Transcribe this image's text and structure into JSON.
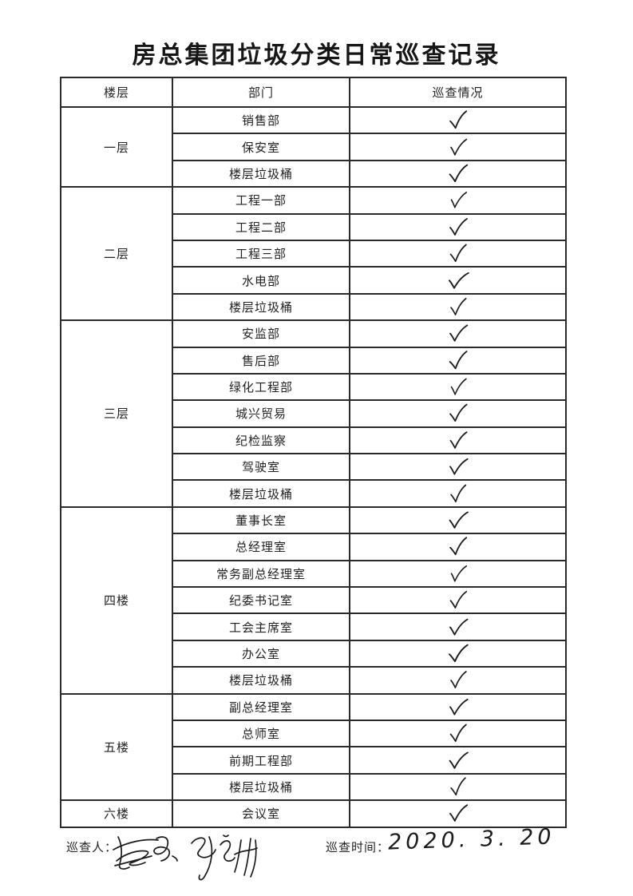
{
  "page": {
    "title": "房总集团垃圾分类日常巡查记录"
  },
  "table": {
    "headers": [
      "楼层",
      "部门",
      "巡查情况"
    ],
    "check_symbol": "✓",
    "sections": [
      {
        "floor": "一层",
        "departments": [
          {
            "name": "销售部",
            "checked": true
          },
          {
            "name": "保安室",
            "checked": true
          },
          {
            "name": "楼层垃圾桶",
            "checked": true
          }
        ]
      },
      {
        "floor": "二层",
        "departments": [
          {
            "name": "工程一部",
            "checked": true
          },
          {
            "name": "工程二部",
            "checked": true
          },
          {
            "name": "工程三部",
            "checked": true
          },
          {
            "name": "水电部",
            "checked": true
          },
          {
            "name": "楼层垃圾桶",
            "checked": true
          }
        ]
      },
      {
        "floor": "三层",
        "departments": [
          {
            "name": "安监部",
            "checked": true
          },
          {
            "name": "售后部",
            "checked": true
          },
          {
            "name": "绿化工程部",
            "checked": true
          },
          {
            "name": "城兴贸易",
            "checked": true
          },
          {
            "name": "纪检监察",
            "checked": true
          },
          {
            "name": "驾驶室",
            "checked": true
          },
          {
            "name": "楼层垃圾桶",
            "checked": true
          }
        ]
      },
      {
        "floor": "四楼",
        "departments": [
          {
            "name": "董事长室",
            "checked": true
          },
          {
            "name": "总经理室",
            "checked": true
          },
          {
            "name": "常务副总经理室",
            "checked": true
          },
          {
            "name": "纪委书记室",
            "checked": true
          },
          {
            "name": "工会主席室",
            "checked": true
          },
          {
            "name": "办公室",
            "checked": true
          },
          {
            "name": "楼层垃圾桶",
            "checked": true
          }
        ]
      },
      {
        "floor": "五楼",
        "departments": [
          {
            "name": "副总经理室",
            "checked": true
          },
          {
            "name": "总师室",
            "checked": true
          },
          {
            "name": "前期工程部",
            "checked": true
          },
          {
            "name": "楼层垃圾桶",
            "checked": true
          }
        ]
      },
      {
        "floor": "六楼",
        "departments": [
          {
            "name": "会议室",
            "checked": true
          }
        ]
      }
    ]
  },
  "footer": {
    "inspector_label": "巡查人：",
    "time_label": "巡查时间：",
    "time_value": "2020. 3. 20",
    "signature_count": 2
  },
  "colors": {
    "ink": "#1b1b1b",
    "border": "#2a2a2a",
    "paper": "#ffffff"
  }
}
